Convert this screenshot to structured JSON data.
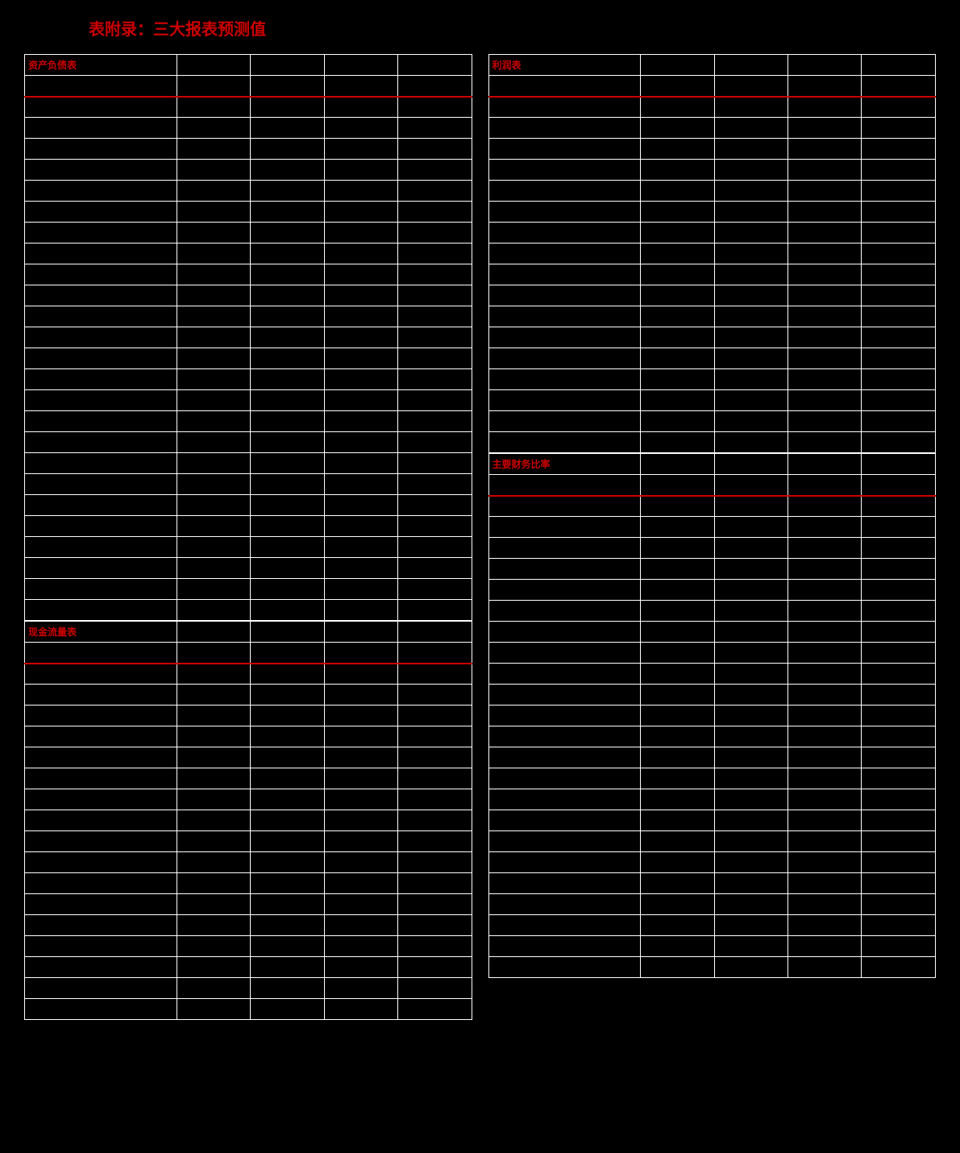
{
  "page_title": "表附录：三大报表预测值",
  "colors": {
    "background": "#000000",
    "grid_line": "#ffffff",
    "accent": "#cc0000",
    "text": "#ffffff"
  },
  "layout": {
    "columns": 2,
    "col_structure": [
      "label",
      "y1",
      "y2",
      "y3",
      "y4"
    ]
  },
  "left_tables": [
    {
      "title": "资产负债表",
      "rows_count": 26,
      "rows": [
        [
          "",
          "",
          "",
          "",
          ""
        ],
        [
          "",
          "",
          "",
          "",
          ""
        ],
        [
          "",
          "",
          "",
          "",
          ""
        ],
        [
          "",
          "",
          "",
          "",
          ""
        ],
        [
          "",
          "",
          "",
          "",
          ""
        ],
        [
          "",
          "",
          "",
          "",
          ""
        ],
        [
          "",
          "",
          "",
          "",
          ""
        ],
        [
          "",
          "",
          "",
          "",
          ""
        ],
        [
          "",
          "",
          "",
          "",
          ""
        ],
        [
          "",
          "",
          "",
          "",
          ""
        ],
        [
          "",
          "",
          "",
          "",
          ""
        ],
        [
          "",
          "",
          "",
          "",
          ""
        ],
        [
          "",
          "",
          "",
          "",
          ""
        ],
        [
          "",
          "",
          "",
          "",
          ""
        ],
        [
          "",
          "",
          "",
          "",
          ""
        ],
        [
          "",
          "",
          "",
          "",
          ""
        ],
        [
          "",
          "",
          "",
          "",
          ""
        ],
        [
          "",
          "",
          "",
          "",
          ""
        ],
        [
          "",
          "",
          "",
          "",
          ""
        ],
        [
          "",
          "",
          "",
          "",
          ""
        ],
        [
          "",
          "",
          "",
          "",
          ""
        ],
        [
          "",
          "",
          "",
          "",
          ""
        ],
        [
          "",
          "",
          "",
          "",
          ""
        ],
        [
          "",
          "",
          "",
          "",
          ""
        ],
        [
          "",
          "",
          "",
          "",
          ""
        ],
        [
          "",
          "",
          "",
          "",
          ""
        ]
      ]
    },
    {
      "title": "现金流量表",
      "rows_count": 18,
      "rows": [
        [
          "",
          "",
          "",
          "",
          ""
        ],
        [
          "",
          "",
          "",
          "",
          ""
        ],
        [
          "",
          "",
          "",
          "",
          ""
        ],
        [
          "",
          "",
          "",
          "",
          ""
        ],
        [
          "",
          "",
          "",
          "",
          ""
        ],
        [
          "",
          "",
          "",
          "",
          ""
        ],
        [
          "",
          "",
          "",
          "",
          ""
        ],
        [
          "",
          "",
          "",
          "",
          ""
        ],
        [
          "",
          "",
          "",
          "",
          ""
        ],
        [
          "",
          "",
          "",
          "",
          ""
        ],
        [
          "",
          "",
          "",
          "",
          ""
        ],
        [
          "",
          "",
          "",
          "",
          ""
        ],
        [
          "",
          "",
          "",
          "",
          ""
        ],
        [
          "",
          "",
          "",
          "",
          ""
        ],
        [
          "",
          "",
          "",
          "",
          ""
        ],
        [
          "",
          "",
          "",
          "",
          ""
        ],
        [
          "",
          "",
          "",
          "",
          ""
        ],
        [
          "",
          "",
          "",
          "",
          ""
        ]
      ]
    }
  ],
  "right_tables": [
    {
      "title": "利润表",
      "rows_count": 18,
      "rows": [
        [
          "",
          "",
          "",
          "",
          ""
        ],
        [
          "",
          "",
          "",
          "",
          ""
        ],
        [
          "",
          "",
          "",
          "",
          ""
        ],
        [
          "",
          "",
          "",
          "",
          ""
        ],
        [
          "",
          "",
          "",
          "",
          ""
        ],
        [
          "",
          "",
          "",
          "",
          ""
        ],
        [
          "",
          "",
          "",
          "",
          ""
        ],
        [
          "",
          "",
          "",
          "",
          ""
        ],
        [
          "",
          "",
          "",
          "",
          ""
        ],
        [
          "",
          "",
          "",
          "",
          ""
        ],
        [
          "",
          "",
          "",
          "",
          ""
        ],
        [
          "",
          "",
          "",
          "",
          ""
        ],
        [
          "",
          "",
          "",
          "",
          ""
        ],
        [
          "",
          "",
          "",
          "",
          ""
        ],
        [
          "",
          "",
          "",
          "",
          ""
        ],
        [
          "",
          "",
          "",
          "",
          ""
        ],
        [
          "",
          "",
          "",
          "",
          ""
        ],
        [
          "",
          "",
          "",
          "",
          ""
        ]
      ]
    },
    {
      "title": "主要财务比率",
      "rows_count": 24,
      "rows": [
        [
          "",
          "",
          "",
          "",
          ""
        ],
        [
          "",
          "",
          "",
          "",
          ""
        ],
        [
          "",
          "",
          "",
          "",
          ""
        ],
        [
          "",
          "",
          "",
          "",
          ""
        ],
        [
          "",
          "",
          "",
          "",
          ""
        ],
        [
          "",
          "",
          "",
          "",
          ""
        ],
        [
          "",
          "",
          "",
          "",
          ""
        ],
        [
          "",
          "",
          "",
          "",
          ""
        ],
        [
          "",
          "",
          "",
          "",
          ""
        ],
        [
          "",
          "",
          "",
          "",
          ""
        ],
        [
          "",
          "",
          "",
          "",
          ""
        ],
        [
          "",
          "",
          "",
          "",
          ""
        ],
        [
          "",
          "",
          "",
          "",
          ""
        ],
        [
          "",
          "",
          "",
          "",
          ""
        ],
        [
          "",
          "",
          "",
          "",
          ""
        ],
        [
          "",
          "",
          "",
          "",
          ""
        ],
        [
          "",
          "",
          "",
          "",
          ""
        ],
        [
          "",
          "",
          "",
          "",
          ""
        ],
        [
          "",
          "",
          "",
          "",
          ""
        ],
        [
          "",
          "",
          "",
          "",
          ""
        ],
        [
          "",
          "",
          "",
          "",
          ""
        ],
        [
          "",
          "",
          "",
          "",
          ""
        ],
        [
          "",
          "",
          "",
          "",
          ""
        ],
        [
          "",
          "",
          "",
          "",
          ""
        ]
      ]
    }
  ]
}
